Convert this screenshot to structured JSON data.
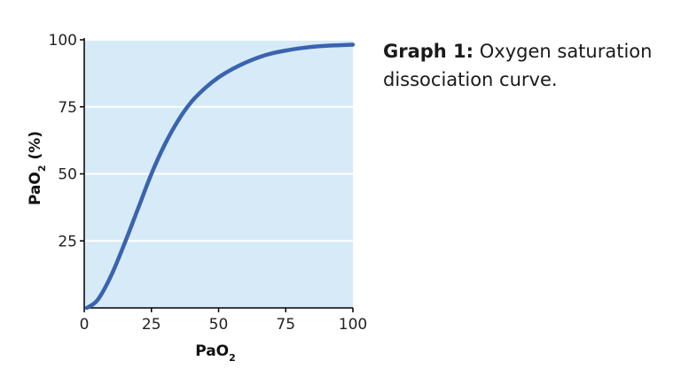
{
  "caption": {
    "bold": "Graph 1:",
    "text": " Oxygen saturation dissociation curve."
  },
  "chart_data": {
    "type": "line",
    "xlabel": "PaO",
    "xlabel_sub": "2",
    "ylabel": "PaO",
    "ylabel_sub": "2",
    "ylabel_suffix": " (%)",
    "xlim": [
      0,
      100
    ],
    "ylim": [
      0,
      100
    ],
    "x_ticks": [
      0,
      25,
      50,
      75,
      100
    ],
    "y_ticks": [
      25,
      50,
      75,
      100
    ],
    "grid": "horizontal",
    "plot_background": "#d7eaf8",
    "line_color": "#3a63b0",
    "series": [
      {
        "x": [
          1,
          5,
          10,
          15,
          20,
          25,
          30,
          35,
          40,
          45,
          50,
          55,
          60,
          65,
          70,
          75,
          80,
          85,
          90,
          95,
          100
        ],
        "values": [
          0,
          3,
          12,
          24,
          37,
          50,
          61,
          70,
          77,
          82,
          86,
          89,
          91.5,
          93.5,
          95,
          96,
          96.8,
          97.4,
          97.8,
          98,
          98.2
        ]
      }
    ]
  }
}
